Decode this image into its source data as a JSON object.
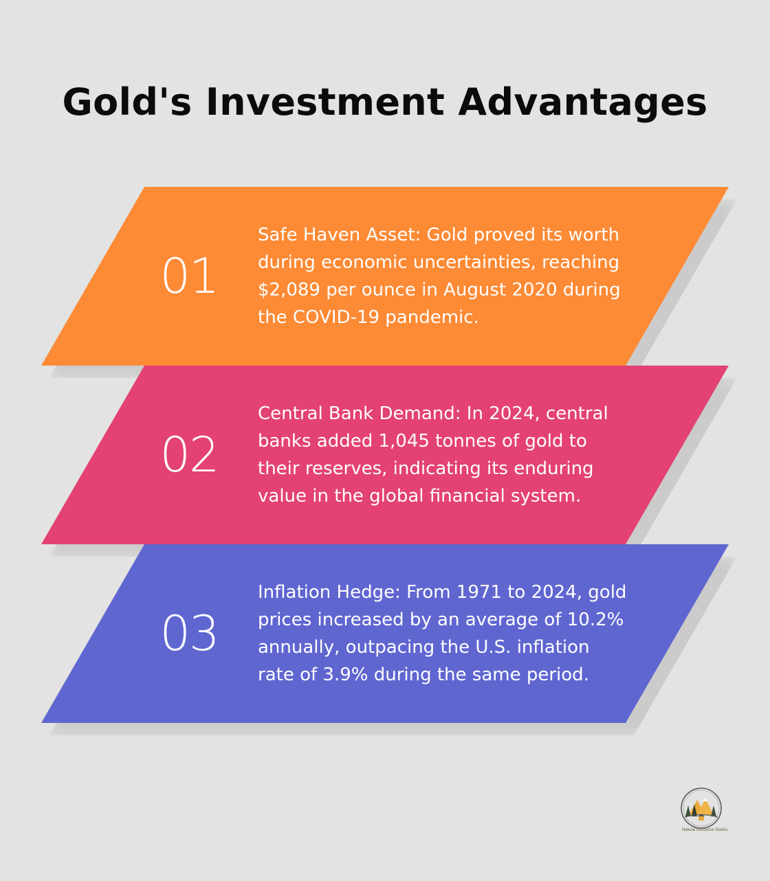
{
  "title": "Gold's Investment Advantages",
  "items": [
    {
      "number": "01",
      "text": "Safe Haven Asset: Gold proved its worth during economic uncertainties, reaching $2,089 per ounce in August 2020 during the COVID-19 pandemic.",
      "color": "#fd8a35"
    },
    {
      "number": "02",
      "text": "Central Bank Demand: In 2024, central banks added 1,045 tonnes of gold to their reserves, indicating its enduring value in the global financial system.",
      "color": "#e34272"
    },
    {
      "number": "03",
      "text": "Inflation Hedge: From 1971 to 2024, gold prices increased by an average of 10.2% annually, outpacing the U.S. inflation rate of 3.9% during the same period.",
      "color": "#6066d0"
    }
  ],
  "logo": {
    "caption": "Natural Resource Stocks",
    "icon": "mountain-trees-logo-icon"
  }
}
